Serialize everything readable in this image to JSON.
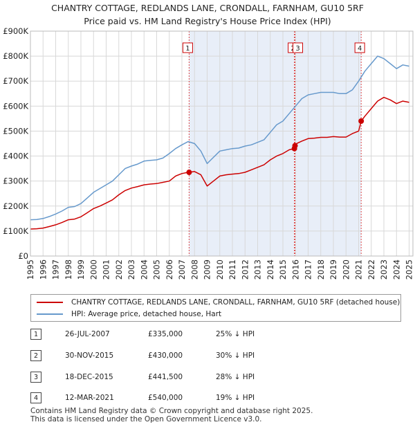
{
  "title_line1": "CHANTRY COTTAGE, REDLANDS LANE, CRONDALL, FARNHAM, GU10 5RF",
  "title_line2": "Price paid vs. HM Land Registry's House Price Index (HPI)",
  "colors": {
    "property": "#cc0000",
    "hpi": "#6699cc",
    "shade": "#e8eef8",
    "marker_line": "#dd4444"
  },
  "legend": {
    "property_label": "CHANTRY COTTAGE, REDLANDS LANE, CRONDALL, FARNHAM, GU10 5RF (detached house)",
    "hpi_label": "HPI: Average price, detached house, Hart"
  },
  "transactions": [
    {
      "num": "1",
      "date": "26-JUL-2007",
      "price": "£335,000",
      "hpi": "25% ↓ HPI"
    },
    {
      "num": "2",
      "date": "30-NOV-2015",
      "price": "£430,000",
      "hpi": "30% ↓ HPI"
    },
    {
      "num": "3",
      "date": "18-DEC-2015",
      "price": "£441,500",
      "hpi": "28% ↓ HPI"
    },
    {
      "num": "4",
      "date": "12-MAR-2021",
      "price": "£540,000",
      "hpi": "19% ↓ HPI"
    }
  ],
  "footer_line1": "Contains HM Land Registry data © Crown copyright and database right 2025.",
  "footer_line2": "This data is licensed under the Open Government Licence v3.0.",
  "chart_data": {
    "type": "line",
    "title": "CHANTRY COTTAGE, REDLANDS LANE, CRONDALL, FARNHAM, GU10 5RF — Price paid vs. HM Land Registry's House Price Index (HPI)",
    "xlim": [
      1995,
      2025.3
    ],
    "ylim": [
      0,
      900000
    ],
    "yticks": [
      0,
      100000,
      200000,
      300000,
      400000,
      500000,
      600000,
      700000,
      800000,
      900000
    ],
    "ytick_labels": [
      "£0",
      "£100K",
      "£200K",
      "£300K",
      "£400K",
      "£500K",
      "£600K",
      "£700K",
      "£800K",
      "£900K"
    ],
    "xticks": [
      1995,
      1996,
      1997,
      1998,
      1999,
      2000,
      2001,
      2002,
      2003,
      2004,
      2005,
      2006,
      2007,
      2008,
      2009,
      2010,
      2011,
      2012,
      2013,
      2014,
      2015,
      2016,
      2017,
      2018,
      2019,
      2020,
      2021,
      2022,
      2023,
      2024,
      2025
    ],
    "shaded_ranges": [
      [
        2007.57,
        2015.91
      ],
      [
        2015.96,
        2021.2
      ]
    ],
    "sale_markers": [
      {
        "label": "1",
        "x": 2007.57,
        "y": 335000
      },
      {
        "label": "2",
        "x": 2015.91,
        "y": 430000
      },
      {
        "label": "3",
        "x": 2015.96,
        "y": 441500
      },
      {
        "label": "4",
        "x": 2021.2,
        "y": 540000
      }
    ],
    "series": [
      {
        "name": "HPI: Average price, detached house, Hart",
        "x": [
          1995,
          1995.5,
          1996,
          1996.5,
          1997,
          1997.5,
          1998,
          1998.5,
          1999,
          1999.5,
          2000,
          2000.5,
          2001,
          2001.5,
          2002,
          2002.5,
          2003,
          2003.5,
          2004,
          2004.5,
          2005,
          2005.5,
          2006,
          2006.5,
          2007,
          2007.5,
          2008,
          2008.5,
          2009,
          2009.5,
          2010,
          2010.5,
          2011,
          2011.5,
          2012,
          2012.5,
          2013,
          2013.5,
          2014,
          2014.5,
          2015,
          2015.5,
          2016,
          2016.5,
          2017,
          2017.5,
          2018,
          2018.5,
          2019,
          2019.5,
          2020,
          2020.5,
          2021,
          2021.5,
          2022,
          2022.5,
          2023,
          2023.5,
          2024,
          2024.5,
          2025
        ],
        "values": [
          145000,
          146000,
          150000,
          158000,
          168000,
          180000,
          195000,
          198000,
          210000,
          232000,
          255000,
          270000,
          285000,
          300000,
          325000,
          350000,
          360000,
          368000,
          380000,
          383000,
          385000,
          392000,
          410000,
          430000,
          445000,
          458000,
          450000,
          420000,
          370000,
          395000,
          420000,
          425000,
          430000,
          432000,
          440000,
          445000,
          455000,
          465000,
          495000,
          525000,
          540000,
          570000,
          600000,
          630000,
          645000,
          650000,
          655000,
          655000,
          655000,
          650000,
          650000,
          665000,
          700000,
          740000,
          770000,
          800000,
          790000,
          770000,
          750000,
          765000,
          760000
        ]
      },
      {
        "name": "CHANTRY COTTAGE, REDLANDS LANE, CRONDALL, FARNHAM, GU10 5RF (detached house)",
        "x": [
          1995,
          1995.5,
          1996,
          1996.5,
          1997,
          1997.5,
          1998,
          1998.5,
          1999,
          1999.5,
          2000,
          2000.5,
          2001,
          2001.5,
          2002,
          2002.5,
          2003,
          2003.5,
          2004,
          2004.5,
          2005,
          2005.5,
          2006,
          2006.5,
          2007,
          2007.5,
          2007.57,
          2008,
          2008.5,
          2009,
          2009.5,
          2010,
          2010.5,
          2011,
          2011.5,
          2012,
          2012.5,
          2013,
          2013.5,
          2014,
          2014.5,
          2015,
          2015.5,
          2015.91,
          2015.96,
          2016,
          2016.5,
          2017,
          2017.5,
          2018,
          2018.5,
          2019,
          2019.5,
          2020,
          2020.5,
          2021,
          2021.2,
          2021.5,
          2022,
          2022.5,
          2023,
          2023.5,
          2024,
          2024.5,
          2025
        ],
        "values": [
          108000,
          109000,
          112000,
          118000,
          125000,
          134000,
          145000,
          148000,
          157000,
          173000,
          190000,
          200000,
          212000,
          225000,
          245000,
          262000,
          272000,
          278000,
          285000,
          288000,
          290000,
          295000,
          300000,
          320000,
          330000,
          335000,
          335000,
          338000,
          325000,
          280000,
          300000,
          320000,
          325000,
          328000,
          330000,
          335000,
          345000,
          355000,
          365000,
          385000,
          400000,
          410000,
          425000,
          430000,
          441500,
          448000,
          460000,
          470000,
          472000,
          475000,
          475000,
          478000,
          476000,
          476000,
          490000,
          500000,
          540000,
          560000,
          590000,
          620000,
          635000,
          625000,
          610000,
          620000,
          615000
        ]
      }
    ]
  }
}
